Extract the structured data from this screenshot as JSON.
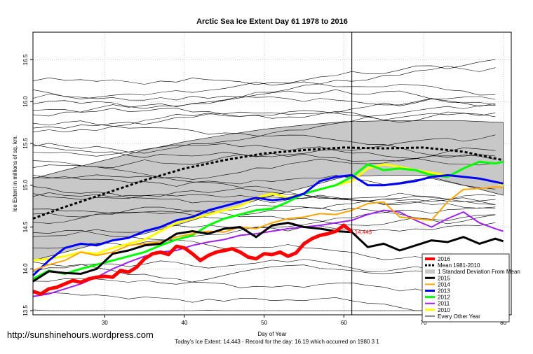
{
  "watermark": "http://sunshinehours.wordpress.com",
  "footer": "Today's Ice Extent: 14.443  - Record for the day: 16.19 which occurred on 1980 3 1",
  "chart_data": {
    "type": "line",
    "title": "Arctic Sea Ice Extent Day 61 1978 to 2016",
    "xlabel": "Day of Year",
    "ylabel": "Ice Extent in millions of sq. km.",
    "xlim": [
      21,
      81
    ],
    "ylim": [
      13.45,
      16.83
    ],
    "xticks": [
      30,
      40,
      50,
      60,
      70,
      80
    ],
    "yticks": [
      13.5,
      14.0,
      14.5,
      15.0,
      15.5,
      16.0,
      16.5
    ],
    "vline_day": 61,
    "current_label": "14.443",
    "current_point": {
      "x": 61,
      "y": 14.443
    },
    "std_band": {
      "x": [
        21,
        25,
        30,
        35,
        40,
        45,
        50,
        55,
        60,
        65,
        70,
        75,
        80
      ],
      "upper": [
        15.08,
        15.18,
        15.3,
        15.42,
        15.52,
        15.6,
        15.67,
        15.72,
        15.76,
        15.77,
        15.77,
        15.77,
        15.75
      ],
      "lower": [
        14.1,
        14.2,
        14.32,
        14.42,
        14.55,
        14.7,
        14.85,
        14.97,
        15.1,
        15.12,
        15.12,
        15.0,
        14.88
      ]
    },
    "series": [
      {
        "name": "Mean 1981-2010",
        "color": "#000000",
        "style": "dashed",
        "width": 3,
        "x": [
          21,
          25,
          30,
          35,
          40,
          45,
          50,
          55,
          60,
          65,
          70,
          75,
          80
        ],
        "y": [
          14.6,
          14.74,
          14.9,
          15.06,
          15.2,
          15.3,
          15.38,
          15.42,
          15.45,
          15.44,
          15.45,
          15.4,
          15.3
        ]
      },
      {
        "name": "2016",
        "color": "#ff0000",
        "style": "solid",
        "width": 5,
        "x": [
          21,
          22,
          23,
          24,
          25,
          26,
          27,
          28,
          29,
          30,
          31,
          32,
          33,
          34,
          35,
          36,
          37,
          38,
          39,
          40,
          41,
          42,
          43,
          44,
          45,
          46,
          47,
          48,
          49,
          50,
          51,
          52,
          53,
          54,
          55,
          56,
          57,
          58,
          59,
          60,
          61
        ],
        "y": [
          13.73,
          13.7,
          13.76,
          13.78,
          13.82,
          13.86,
          13.84,
          13.88,
          13.9,
          13.91,
          13.9,
          13.98,
          13.96,
          14.02,
          14.12,
          14.18,
          14.2,
          14.17,
          14.27,
          14.25,
          14.18,
          14.1,
          14.16,
          14.2,
          14.22,
          14.24,
          14.2,
          14.14,
          14.12,
          14.18,
          14.17,
          14.2,
          14.15,
          14.19,
          14.3,
          14.36,
          14.4,
          14.42,
          14.45,
          14.52,
          14.443
        ]
      },
      {
        "name": "2015",
        "color": "#000000",
        "style": "solid",
        "width": 3,
        "x": [
          21,
          23,
          25,
          27,
          29,
          31,
          33,
          35,
          37,
          39,
          41,
          43,
          45,
          47,
          49,
          51,
          53,
          55,
          57,
          59,
          61,
          63,
          65,
          67,
          69,
          71,
          73,
          75,
          77,
          79,
          80
        ],
        "y": [
          13.85,
          13.97,
          13.95,
          13.94,
          14.0,
          14.18,
          14.22,
          14.28,
          14.3,
          14.42,
          14.45,
          14.42,
          14.48,
          14.5,
          14.38,
          14.52,
          14.55,
          14.5,
          14.48,
          14.45,
          14.44,
          14.26,
          14.3,
          14.22,
          14.28,
          14.34,
          14.32,
          14.38,
          14.3,
          14.36,
          14.33
        ]
      },
      {
        "name": "2014",
        "color": "#ffa500",
        "style": "solid",
        "width": 2,
        "x": [
          21,
          23,
          25,
          27,
          29,
          31,
          33,
          35,
          37,
          39,
          41,
          43,
          45,
          47,
          49,
          51,
          53,
          55,
          57,
          59,
          61,
          63,
          65,
          67,
          69,
          71,
          73,
          75,
          77,
          79,
          80
        ],
        "y": [
          13.98,
          14.05,
          14.1,
          14.2,
          14.16,
          14.2,
          14.28,
          14.3,
          14.32,
          14.38,
          14.42,
          14.45,
          14.44,
          14.5,
          14.48,
          14.55,
          14.6,
          14.62,
          14.66,
          14.65,
          14.7,
          14.78,
          14.8,
          14.62,
          14.6,
          14.58,
          14.8,
          14.95,
          14.96,
          14.98,
          14.97
        ]
      },
      {
        "name": "2013",
        "color": "#0000ff",
        "style": "solid",
        "width": 3,
        "x": [
          21,
          23,
          25,
          27,
          29,
          31,
          33,
          35,
          37,
          39,
          41,
          43,
          45,
          47,
          49,
          51,
          53,
          55,
          57,
          59,
          61,
          63,
          65,
          67,
          69,
          71,
          73,
          75,
          77,
          79,
          80
        ],
        "y": [
          13.92,
          14.1,
          14.25,
          14.3,
          14.28,
          14.34,
          14.37,
          14.45,
          14.5,
          14.58,
          14.62,
          14.7,
          14.75,
          14.8,
          14.85,
          14.82,
          14.84,
          14.9,
          15.05,
          15.1,
          15.12,
          15.0,
          15.0,
          15.02,
          15.05,
          15.1,
          15.12,
          15.1,
          15.08,
          15.04,
          15.02
        ]
      },
      {
        "name": "2012",
        "color": "#00ff00",
        "style": "solid",
        "width": 3,
        "x": [
          21,
          23,
          25,
          27,
          29,
          31,
          33,
          35,
          37,
          39,
          41,
          43,
          45,
          47,
          49,
          51,
          53,
          55,
          57,
          59,
          61,
          63,
          65,
          67,
          69,
          71,
          73,
          75,
          77,
          79,
          80
        ],
        "y": [
          13.88,
          13.98,
          13.94,
          14.0,
          14.05,
          14.1,
          14.15,
          14.2,
          14.28,
          14.35,
          14.4,
          14.52,
          14.6,
          14.65,
          14.7,
          14.72,
          14.8,
          14.9,
          14.95,
          15.0,
          15.1,
          15.25,
          15.18,
          15.2,
          15.18,
          15.12,
          15.1,
          15.2,
          15.28,
          15.26,
          15.28
        ]
      },
      {
        "name": "2011",
        "color": "#a020f0",
        "style": "solid",
        "width": 2,
        "x": [
          21,
          23,
          25,
          27,
          29,
          31,
          33,
          35,
          37,
          39,
          41,
          43,
          45,
          47,
          49,
          51,
          53,
          55,
          57,
          59,
          61,
          63,
          65,
          67,
          69,
          71,
          73,
          75,
          77,
          79,
          80
        ],
        "y": [
          13.67,
          13.7,
          13.76,
          13.82,
          13.9,
          14.0,
          14.08,
          14.15,
          14.2,
          14.22,
          14.28,
          14.32,
          14.35,
          14.4,
          14.42,
          14.45,
          14.48,
          14.5,
          14.52,
          14.55,
          14.58,
          14.65,
          14.7,
          14.68,
          14.58,
          14.5,
          14.6,
          14.68,
          14.55,
          14.48,
          14.45
        ]
      },
      {
        "name": "2010",
        "color": "#ffff00",
        "style": "solid",
        "width": 3,
        "x": [
          21,
          23,
          25,
          27,
          29,
          31,
          33,
          35,
          37,
          39,
          41,
          43,
          45,
          47,
          49,
          51,
          53,
          55,
          57,
          59,
          61,
          63,
          65,
          67,
          69,
          71,
          73,
          75,
          77,
          79,
          80
        ],
        "y": [
          14.1,
          14.12,
          14.15,
          14.2,
          14.18,
          14.25,
          14.3,
          14.35,
          14.45,
          14.55,
          14.6,
          14.65,
          14.7,
          14.75,
          14.85,
          14.9,
          14.85,
          14.9,
          14.95,
          15.0,
          15.05,
          15.2,
          15.25,
          15.22,
          15.18,
          15.15,
          15.12,
          15.1,
          15.08,
          15.04,
          15.0
        ]
      }
    ],
    "other_years_label": "Every Other Year",
    "other_years_bases": [
      13.5,
      13.7,
      13.85,
      14.0,
      14.1,
      14.25,
      14.35,
      14.45,
      14.55,
      14.65,
      14.75,
      14.85,
      14.92,
      15.0,
      15.08,
      15.15,
      15.22,
      15.3,
      15.38,
      15.45,
      15.52,
      15.6,
      15.68,
      15.75,
      15.82,
      15.9,
      15.98,
      16.05,
      16.12,
      16.2
    ],
    "legend": [
      {
        "label": "2016",
        "color": "#ff0000",
        "kind": "line",
        "width": 4
      },
      {
        "label": "Mean 1981-2010",
        "color": "#000000",
        "kind": "dashed",
        "width": 3
      },
      {
        "label": "1 Standard Deviation From Mean",
        "color": "#c8c8c8",
        "kind": "box"
      },
      {
        "label": "2015",
        "color": "#000000",
        "kind": "line",
        "width": 3
      },
      {
        "label": "2014",
        "color": "#ffa500",
        "kind": "line",
        "width": 2
      },
      {
        "label": "2013",
        "color": "#0000ff",
        "kind": "line",
        "width": 3
      },
      {
        "label": "2012",
        "color": "#00ff00",
        "kind": "line",
        "width": 3
      },
      {
        "label": "2011",
        "color": "#a020f0",
        "kind": "line",
        "width": 2
      },
      {
        "label": "2010",
        "color": "#ffff00",
        "kind": "line",
        "width": 3
      },
      {
        "label": "Every Other Year",
        "color": "#000000",
        "kind": "line",
        "width": 1
      }
    ]
  }
}
